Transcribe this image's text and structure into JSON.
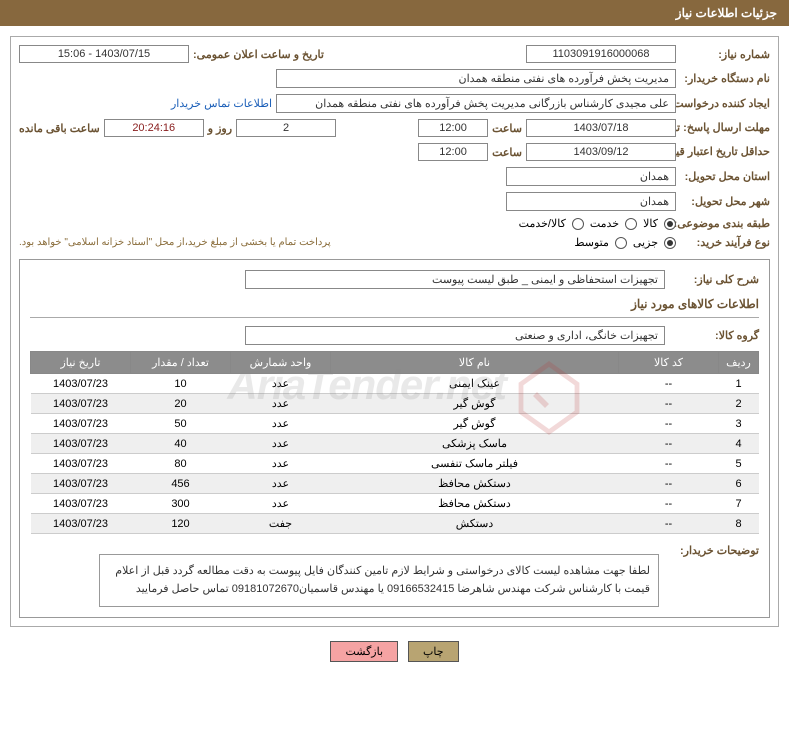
{
  "header": {
    "title": "جزئیات اطلاعات نیاز"
  },
  "fields": {
    "reqNum": {
      "label": "شماره نیاز:",
      "value": "1103091916000068"
    },
    "announceDate": {
      "label": "تاریخ و ساعت اعلان عمومی:",
      "value": "1403/07/15 - 15:06"
    },
    "buyerOrg": {
      "label": "نام دستگاه خریدار:",
      "value": "مدیریت پخش فرآورده های نفتی منطقه همدان"
    },
    "requester": {
      "label": "ایجاد کننده درخواست:",
      "value": "علی مجیدی کارشناس بازرگانی مدیریت پخش فرآورده های نفتی منطقه همدان",
      "link": "اطلاعات تماس خریدار"
    },
    "deadline": {
      "label": "مهلت ارسال پاسخ: تا تاریخ:",
      "date": "1403/07/18",
      "timeLabel": "ساعت",
      "time": "12:00",
      "days": "2",
      "daysLabel": "روز و",
      "timer": "20:24:16",
      "remainLabel": "ساعت باقی مانده"
    },
    "validity": {
      "label": "حداقل تاریخ اعتبار قیمت: تا تاریخ:",
      "date": "1403/09/12",
      "timeLabel": "ساعت",
      "time": "12:00"
    },
    "province": {
      "label": "استان محل تحویل:",
      "value": "همدان"
    },
    "city": {
      "label": "شهر محل تحویل:",
      "value": "همدان"
    },
    "category": {
      "label": "طبقه بندی موضوعی:",
      "opt1": "کالا",
      "opt2": "خدمت",
      "opt3": "کالا/خدمت"
    },
    "procType": {
      "label": "نوع فرآیند خرید:",
      "opt1": "جزیی",
      "opt2": "متوسط",
      "note": "پرداخت تمام یا بخشی از مبلغ خرید،از محل \"اسناد خزانه اسلامی\" خواهد بود."
    },
    "overallDesc": {
      "label": "شرح کلی نیاز:",
      "value": "تجهیزات استحفاظی و ایمنی _ طبق لیست پیوست"
    },
    "goodsInfo": {
      "label": "اطلاعات کالاهای مورد نیاز"
    },
    "goodsGroup": {
      "label": "گروه کالا:",
      "value": "تجهیزات خانگی، اداری و صنعتی"
    },
    "buyerDesc": {
      "label": "توضیحات خریدار:",
      "value": "لطفا جهت مشاهده لیست کالای درخواستی و شرایط لازم تامین کنندگان فایل پیوست به دقت مطالعه گردد قبل از اعلام قیمت با کارشناس شرکت مهندس شاهرضا 09166532415 یا مهندس قاسمیان09181072670 تماس حاصل فرمایید"
    }
  },
  "table": {
    "headers": {
      "row": "ردیف",
      "code": "کد کالا",
      "name": "نام کالا",
      "unit": "واحد شمارش",
      "qty": "تعداد / مقدار",
      "date": "تاریخ نیاز"
    },
    "rows": [
      {
        "n": "1",
        "code": "--",
        "name": "عینک ایمنی",
        "unit": "عدد",
        "qty": "10",
        "date": "1403/07/23"
      },
      {
        "n": "2",
        "code": "--",
        "name": "گوش گیر",
        "unit": "عدد",
        "qty": "20",
        "date": "1403/07/23"
      },
      {
        "n": "3",
        "code": "--",
        "name": "گوش گیر",
        "unit": "عدد",
        "qty": "50",
        "date": "1403/07/23"
      },
      {
        "n": "4",
        "code": "--",
        "name": "ماسک پزشکی",
        "unit": "عدد",
        "qty": "40",
        "date": "1403/07/23"
      },
      {
        "n": "5",
        "code": "--",
        "name": "فیلتر ماسک تنفسی",
        "unit": "عدد",
        "qty": "80",
        "date": "1403/07/23"
      },
      {
        "n": "6",
        "code": "--",
        "name": "دستکش محافظ",
        "unit": "عدد",
        "qty": "456",
        "date": "1403/07/23"
      },
      {
        "n": "7",
        "code": "--",
        "name": "دستکش محافظ",
        "unit": "عدد",
        "qty": "300",
        "date": "1403/07/23"
      },
      {
        "n": "8",
        "code": "--",
        "name": "دستکش",
        "unit": "جفت",
        "qty": "120",
        "date": "1403/07/23"
      }
    ]
  },
  "buttons": {
    "print": "چاپ",
    "back": "بازگشت"
  },
  "watermark": {
    "text": "AriaTender.net"
  }
}
